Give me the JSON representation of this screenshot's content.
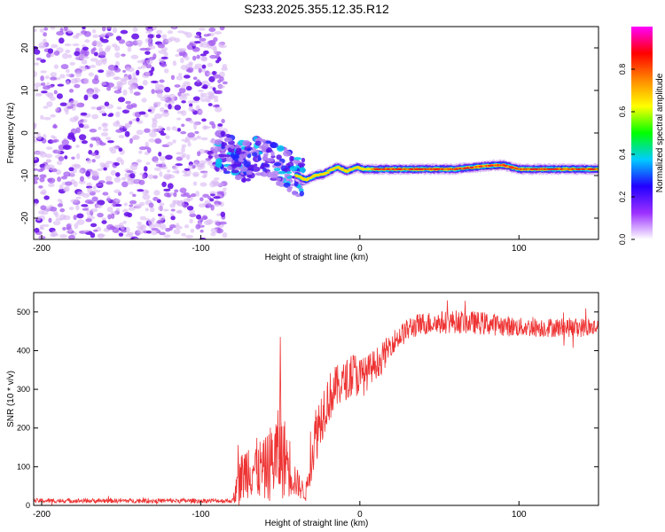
{
  "title": "S233.2025.355.12.35.R12",
  "chart_data": [
    {
      "type": "heatmap",
      "xlabel": "Height of straight line (km)",
      "ylabel": "Frequency (Hz)",
      "xlim": [
        -205,
        150
      ],
      "ylim": [
        -25,
        25
      ],
      "xticks": [
        -200,
        -100,
        0,
        100
      ],
      "yticks": [
        -20,
        -10,
        0,
        10,
        20
      ],
      "colorbar": {
        "label": "Normalized spectral amplitude",
        "range": [
          0,
          1
        ],
        "ticks": [
          0.0,
          0.2,
          0.4,
          0.6,
          0.8
        ],
        "tick_labels": [
          "0.0",
          "0.2",
          "0.4",
          "0.6",
          "0.8"
        ],
        "colors": [
          "#ffffff",
          "#9b30ff",
          "#2200ff",
          "#00ccff",
          "#00ff00",
          "#ffff00",
          "#ff8800",
          "#ff0000",
          "#ff00ff"
        ]
      },
      "noise_region_x": [
        -205,
        -88
      ],
      "signal_track": {
        "x": [
          -88,
          -80,
          -72,
          -64,
          -56,
          -48,
          -40,
          -34,
          -28,
          -22,
          -14,
          -8,
          -2,
          2,
          10,
          20,
          40,
          60,
          80,
          90,
          100,
          120,
          150
        ],
        "freq": [
          -4,
          -5.5,
          -7,
          -5,
          -6.5,
          -8,
          -10,
          -11,
          -10,
          -9.5,
          -8,
          -9,
          -8,
          -8.5,
          -8.5,
          -8.5,
          -8.5,
          -8.5,
          -7.7,
          -7.5,
          -8.5,
          -8.5,
          -8.5
        ]
      }
    },
    {
      "type": "line",
      "xlabel": "Height of straight line (km)",
      "ylabel": "SNR (10 * v/v)",
      "xlim": [
        -205,
        150
      ],
      "ylim": [
        0,
        550
      ],
      "xticks": [
        -200,
        -100,
        0,
        100
      ],
      "yticks": [
        0,
        100,
        200,
        300,
        400,
        500
      ],
      "color": "#ee3333",
      "envelope": {
        "x": [
          -205,
          -80,
          -76,
          -70,
          -60,
          -52,
          -46,
          -40,
          -34,
          -28,
          -22,
          -16,
          -10,
          -4,
          2,
          8,
          14,
          20,
          26,
          32,
          40,
          60,
          80,
          100,
          120,
          150
        ],
        "mean": [
          12,
          12,
          60,
          100,
          90,
          130,
          120,
          60,
          30,
          180,
          260,
          300,
          320,
          340,
          330,
          360,
          380,
          420,
          440,
          460,
          470,
          475,
          470,
          460,
          460,
          460
        ],
        "amplitude": [
          6,
          6,
          60,
          80,
          80,
          120,
          100,
          40,
          20,
          80,
          70,
          60,
          50,
          60,
          50,
          40,
          40,
          30,
          30,
          30,
          30,
          30,
          30,
          25,
          25,
          25
        ]
      }
    }
  ]
}
